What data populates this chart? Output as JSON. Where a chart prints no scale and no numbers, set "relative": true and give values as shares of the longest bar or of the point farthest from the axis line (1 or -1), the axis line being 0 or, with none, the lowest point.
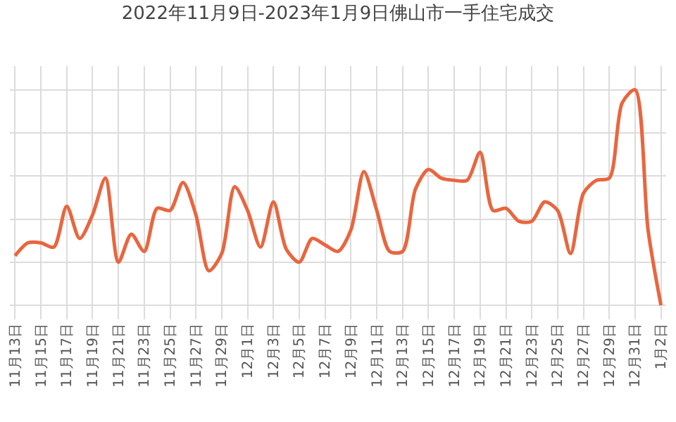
{
  "chart_data": {
    "type": "line",
    "title": "2022年11月9日-2023年1月9日佛山市一手住宅成交",
    "relative": true,
    "grid": true,
    "marker": "none",
    "line_style": "solid",
    "categories": [
      null,
      "11月13日",
      null,
      "11月15日",
      null,
      "11月17日",
      null,
      "11月19日",
      null,
      "11月21日",
      null,
      "11月23日",
      null,
      "11月25日",
      null,
      "11月27日",
      null,
      "11月29日",
      null,
      "12月1日",
      null,
      "12月3日",
      null,
      "12月5日",
      null,
      "12月7日",
      null,
      "12月9日",
      null,
      "12月11日",
      null,
      "12月13日",
      null,
      "12月15日",
      null,
      "12月17日",
      null,
      "12月19日",
      null,
      "12月21日",
      null,
      "12月23日",
      null,
      "12月25日",
      null,
      "12月27日",
      null,
      "12月29日",
      null,
      "12月31日",
      null,
      "1月2日"
    ],
    "series": [
      {
        "color": "#e8663f",
        "values": [
          null,
          0.23,
          0.29,
          0.29,
          0.27,
          0.46,
          0.31,
          0.42,
          0.59,
          0.2,
          0.33,
          0.25,
          0.45,
          0.44,
          0.57,
          0.42,
          0.16,
          0.24,
          0.55,
          0.44,
          0.27,
          0.48,
          0.26,
          0.2,
          0.31,
          0.28,
          0.25,
          0.35,
          0.62,
          0.44,
          0.25,
          0.25,
          0.54,
          0.63,
          0.59,
          0.58,
          0.58,
          0.71,
          0.44,
          0.45,
          0.39,
          0.39,
          0.48,
          0.44,
          0.24,
          0.52,
          0.58,
          0.59,
          0.94,
          1,
          0.35,
          0
        ]
      }
    ]
  }
}
